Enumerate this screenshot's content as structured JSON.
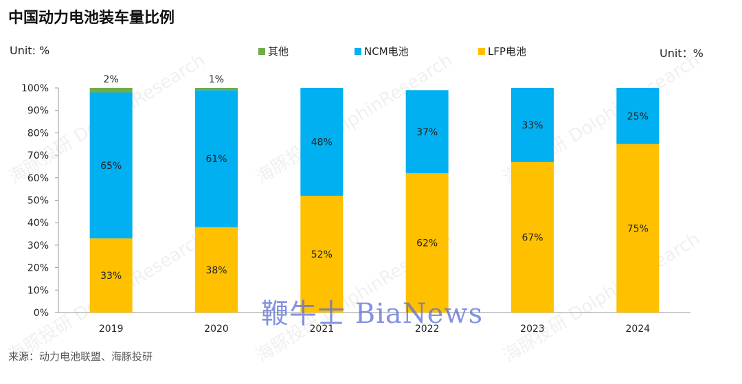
{
  "title": "中国动力电池装车量比例",
  "unit_left": "Unit: %",
  "unit_right": "Unit：%",
  "source": "来源：动力电池联盟、海豚投研",
  "logo_text": "鞭牛士 BiaNews",
  "watermark_text": "海豚投研 DolphinResearch",
  "colors": {
    "lfp": "#FFC000",
    "ncm": "#00B0F0",
    "other": "#70AD47"
  },
  "chart_data": {
    "type": "bar",
    "stacked": true,
    "categories": [
      "2019",
      "2020",
      "2021",
      "2022",
      "2023",
      "2024"
    ],
    "series": [
      {
        "name": "LFP电池",
        "key": "lfp",
        "values": [
          33,
          38,
          52,
          62,
          67,
          75
        ],
        "labels": [
          "33%",
          "38%",
          "52%",
          "62%",
          "67%",
          "75%"
        ]
      },
      {
        "name": "NCM电池",
        "key": "ncm",
        "values": [
          65,
          61,
          48,
          37,
          33,
          25
        ],
        "labels": [
          "65%",
          "61%",
          "48%",
          "37%",
          "33%",
          "25%"
        ]
      },
      {
        "name": "其他",
        "key": "other",
        "values": [
          2,
          1,
          0,
          0,
          0,
          0
        ],
        "labels": [
          "2%",
          "1%",
          "",
          "",
          "",
          ""
        ]
      }
    ],
    "ylim": [
      0,
      100
    ],
    "yticks": [
      "0%",
      "10%",
      "20%",
      "30%",
      "40%",
      "50%",
      "60%",
      "70%",
      "80%",
      "90%",
      "100%"
    ],
    "legend_position": "top",
    "grid": false
  }
}
